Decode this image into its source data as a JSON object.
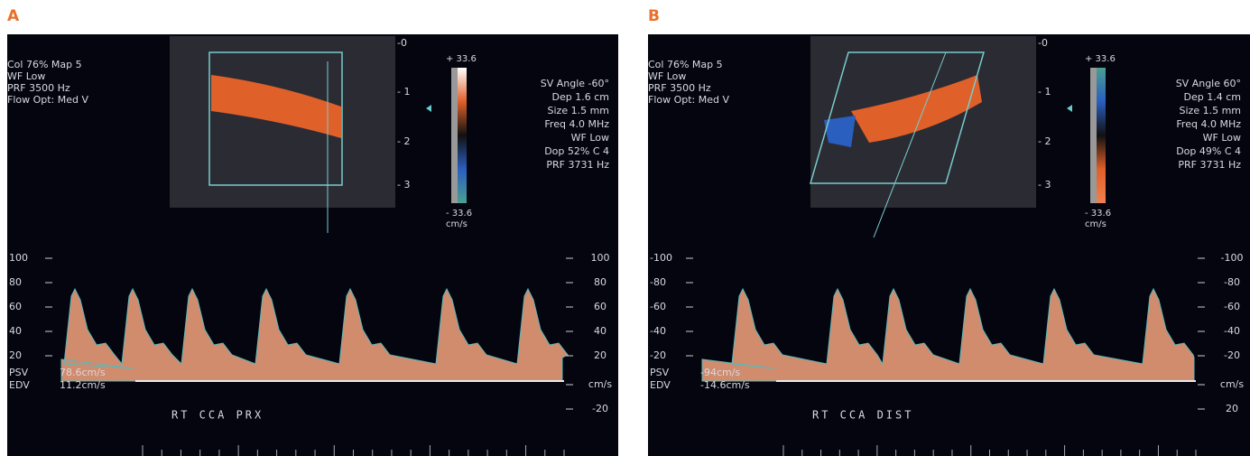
{
  "figure": {
    "panels": [
      {
        "label": "A",
        "settings": [
          "Col 76%  Map 5",
          "WF Low",
          "PRF 3500  Hz",
          "Flow Opt: Med V"
        ],
        "depth_marks": [
          "-0",
          "- 1",
          "- 2",
          "- 3"
        ],
        "color_scale": {
          "top": "+ 33.6",
          "bottom": "- 33.6",
          "unit": "cm/s"
        },
        "doppler_settings": [
          "SV Angle -60°",
          "Dep 1.6  cm",
          "Size 1.5  mm",
          "Freq 4.0  MHz",
          "WF Low",
          "Dop 52%  C 4",
          "PRF 3731  Hz"
        ],
        "left_scale": [
          "100",
          "80",
          "60",
          "40",
          "20"
        ],
        "right_scale": [
          "100",
          "80",
          "60",
          "40",
          "20",
          "cm/s",
          "-20"
        ],
        "psv": {
          "label": "PSV",
          "value": "78.6cm/s"
        },
        "edv": {
          "label": "EDV",
          "value": "11.2cm/s"
        },
        "caption": "RT  CCA  PRX"
      },
      {
        "label": "B",
        "settings": [
          "Col 76%  Map 5",
          "WF Low",
          "PRF 3500  Hz",
          "Flow Opt: Med V"
        ],
        "depth_marks": [
          "-0",
          "- 1",
          "- 2",
          "- 3"
        ],
        "color_scale": {
          "top": "+ 33.6",
          "bottom": "- 33.6",
          "unit": "cm/s"
        },
        "doppler_settings": [
          "SV Angle 60°",
          "Dep 1.4  cm",
          "Size 1.5  mm",
          "Freq 4.0  MHz",
          "WF Low",
          "Dop 49%  C 4",
          "PRF 3731  Hz"
        ],
        "left_scale": [
          "-100",
          "-80",
          "-60",
          "-40",
          "-20"
        ],
        "right_scale": [
          "-100",
          "-80",
          "-60",
          "-40",
          "-20",
          "cm/s",
          "20"
        ],
        "psv": {
          "label": "PSV",
          "value": "-94cm/s"
        },
        "edv": {
          "label": "EDV",
          "value": "-14.6cm/s"
        },
        "caption": "RT  CCA  DIST"
      }
    ]
  }
}
